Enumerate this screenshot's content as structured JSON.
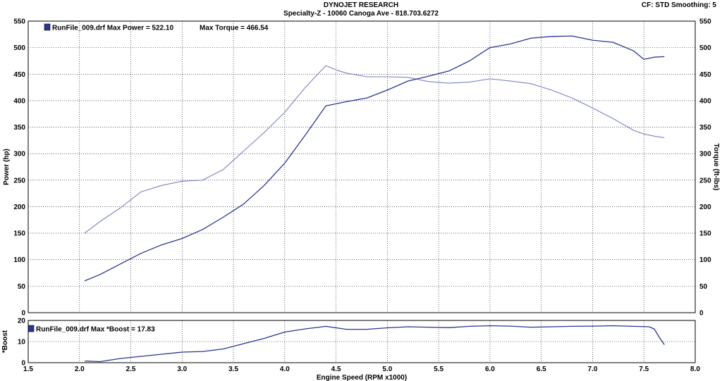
{
  "header": {
    "title": "DYNOJET RESEARCH",
    "subtitle": "Specialty-Z - 10060 Canoga Ave - 818.703.6272",
    "correction": "CF: STD  Smoothing: 5"
  },
  "colors": {
    "power": "#2b3592",
    "torque": "#7a82c0",
    "boost": "#2b3592",
    "grid": "#000000",
    "legend_swatch": "#2b3592"
  },
  "chart_data": [
    {
      "type": "line",
      "xlabel": "Engine Speed (RPM x1000)",
      "ylabel": "Power (hp)",
      "y2label": "Torque (ft-lbs)",
      "xlim": [
        1.5,
        8.0
      ],
      "ylim": [
        0,
        550
      ],
      "y2lim": [
        0,
        550
      ],
      "xticks": [
        "1.5",
        "2.0",
        "2.5",
        "3.0",
        "3.5",
        "4.0",
        "4.5",
        "5.0",
        "5.5",
        "6.0",
        "6.5",
        "7.0",
        "7.5",
        "8.0"
      ],
      "yticks": [
        "0",
        "50",
        "100",
        "150",
        "200",
        "250",
        "300",
        "350",
        "400",
        "450",
        "500",
        "550"
      ],
      "grid": true,
      "legend": {
        "placement": "top-left",
        "file": "RunFile_009.drf",
        "power_text": "Max Power = 522.10",
        "torque_text": "Max Torque = 466.54"
      },
      "series": [
        {
          "key": "power",
          "x": [
            2.05,
            2.2,
            2.4,
            2.6,
            2.8,
            3.0,
            3.2,
            3.4,
            3.6,
            3.8,
            4.0,
            4.2,
            4.4,
            4.6,
            4.8,
            5.0,
            5.2,
            5.4,
            5.6,
            5.8,
            6.0,
            6.2,
            6.4,
            6.6,
            6.8,
            7.0,
            7.2,
            7.4,
            7.5,
            7.6,
            7.7
          ],
          "values": [
            60,
            72,
            92,
            112,
            128,
            140,
            157,
            180,
            205,
            240,
            282,
            335,
            390,
            398,
            405,
            420,
            437,
            446,
            456,
            475,
            500,
            507,
            518,
            521,
            522,
            514,
            510,
            494,
            478,
            482,
            483
          ]
        },
        {
          "key": "torque",
          "x": [
            2.05,
            2.2,
            2.4,
            2.6,
            2.8,
            3.0,
            3.2,
            3.4,
            3.6,
            3.8,
            4.0,
            4.2,
            4.4,
            4.5,
            4.6,
            4.8,
            5.0,
            5.2,
            5.4,
            5.6,
            5.8,
            6.0,
            6.2,
            6.4,
            6.6,
            6.8,
            7.0,
            7.2,
            7.4,
            7.5,
            7.6,
            7.7
          ],
          "values": [
            150,
            172,
            198,
            228,
            240,
            248,
            250,
            270,
            305,
            340,
            378,
            425,
            466,
            458,
            452,
            445,
            445,
            444,
            436,
            433,
            435,
            441,
            437,
            432,
            420,
            405,
            386,
            366,
            344,
            337,
            333,
            330
          ]
        }
      ]
    },
    {
      "type": "line",
      "ylabel": "*Boost",
      "xlim": [
        1.5,
        8.0
      ],
      "ylim": [
        0,
        20
      ],
      "yticks": [
        "0",
        "10",
        "20"
      ],
      "grid": true,
      "legend": {
        "placement": "top-left",
        "text": "RunFile_009.drf Max *Boost = 17.83"
      },
      "series": [
        {
          "key": "boost",
          "x": [
            2.05,
            2.2,
            2.4,
            2.6,
            2.8,
            3.0,
            3.2,
            3.4,
            3.6,
            3.8,
            4.0,
            4.2,
            4.4,
            4.6,
            4.8,
            5.0,
            5.2,
            5.4,
            5.6,
            5.8,
            6.0,
            6.2,
            6.4,
            6.6,
            6.8,
            7.0,
            7.2,
            7.4,
            7.55,
            7.6,
            7.65,
            7.7
          ],
          "values": [
            0.8,
            0.5,
            2.0,
            3.0,
            4.0,
            5.0,
            5.3,
            6.5,
            9.0,
            11.5,
            14.5,
            16.0,
            17.2,
            15.8,
            15.8,
            16.5,
            17.0,
            16.8,
            16.6,
            17.2,
            17.5,
            17.3,
            16.8,
            17.0,
            17.2,
            17.3,
            17.5,
            17.2,
            17.0,
            16.0,
            12.0,
            8.5
          ]
        }
      ]
    }
  ]
}
